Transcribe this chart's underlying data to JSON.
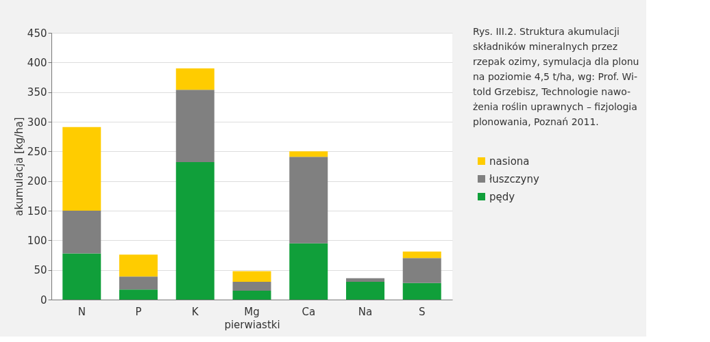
{
  "chart_data": {
    "type": "bar",
    "stacked": true,
    "categories": [
      "N",
      "P",
      "K",
      "Mg",
      "Ca",
      "Na",
      "S"
    ],
    "series": [
      {
        "name": "pędy",
        "color": "#109f3a",
        "values": [
          78,
          17,
          232,
          15,
          95,
          30,
          28
        ]
      },
      {
        "name": "łuszczyny",
        "color": "#808080",
        "values": [
          72,
          22,
          122,
          15,
          146,
          6,
          42
        ]
      },
      {
        "name": "nasiona",
        "color": "#ffcc00",
        "values": [
          141,
          37,
          36,
          18,
          9,
          null,
          11
        ]
      }
    ],
    "xlabel": "pierwiastki",
    "ylabel": "akumulacja [kg/ha]",
    "ylim": [
      0,
      450
    ],
    "yticks": [
      0,
      50,
      100,
      150,
      200,
      250,
      300,
      350,
      400,
      450
    ],
    "grid": "y",
    "legend": "right",
    "annotations": [
      "Rys. III.2. Struktura akumulacji\nskładników mineralnych przez\nrzepak ozimy, symulacja dla plonu\nna poziomie 4,5 t/ha, wg: Prof. Wi-\ntold Grzebisz, Technologie nawo-\nżenia roślin uprawnych – fizjologia\nplonowania, Poznań 2011."
    ]
  }
}
